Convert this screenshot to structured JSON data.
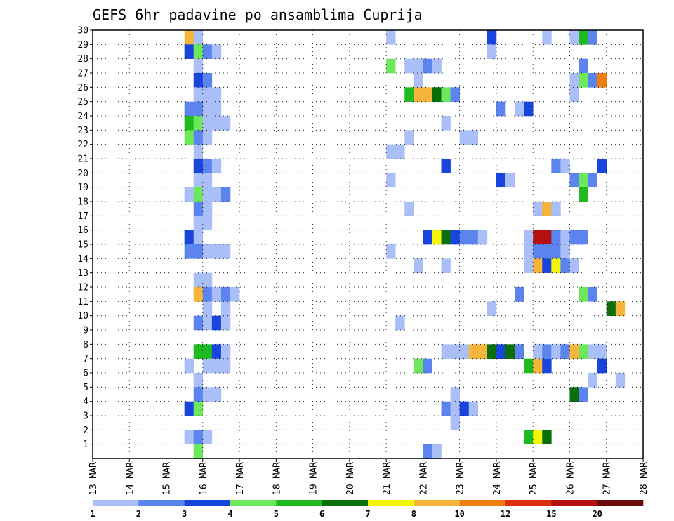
{
  "chart_data": {
    "type": "heatmap",
    "title": "GEFS 6hr padavine po ansamblima Cuprija",
    "x_ticks": [
      "13 MAR",
      "14 MAR",
      "15 MAR",
      "16 MAR",
      "17 MAR",
      "18 MAR",
      "19 MAR",
      "20 MAR",
      "21 MAR",
      "22 MAR",
      "23 MAR",
      "24 MAR",
      "25 MAR",
      "26 MAR",
      "27 MAR",
      "28 MAR"
    ],
    "y_ticks": [
      "1",
      "2",
      "3",
      "4",
      "5",
      "6",
      "7",
      "8",
      "9",
      "10",
      "11",
      "12",
      "13",
      "14",
      "15",
      "16",
      "17",
      "18",
      "19",
      "20",
      "21",
      "22",
      "23",
      "24",
      "25",
      "26",
      "27",
      "28",
      "29",
      "30"
    ],
    "x_range_days": [
      13,
      28
    ],
    "x_step_hours": 6,
    "y_range": [
      0,
      30
    ],
    "grid": true,
    "colorbar": {
      "labels": [
        "1",
        "2",
        "3",
        "4",
        "5",
        "6",
        "7",
        "8",
        "10",
        "12",
        "15",
        "20"
      ],
      "colors": [
        "#aabff7",
        "#5b84ef",
        "#1846dd",
        "#6de85c",
        "#1fba1f",
        "#0a6e0a",
        "#f5f50a",
        "#f7b43a",
        "#f07d10",
        "#dc2e0a",
        "#b41010",
        "#6a0a0a"
      ]
    },
    "note": "cells: [member(y), time index from 13 MAR 00UTC in 6h steps, precip class index into colorbar]",
    "cells": [
      [
        29,
        10,
        7
      ],
      [
        29,
        11,
        0
      ],
      [
        28,
        10,
        2
      ],
      [
        28,
        11,
        3
      ],
      [
        28,
        12,
        1
      ],
      [
        28,
        13,
        0
      ],
      [
        27,
        11,
        0
      ],
      [
        26,
        11,
        2
      ],
      [
        26,
        12,
        1
      ],
      [
        25,
        11,
        0
      ],
      [
        25,
        12,
        0
      ],
      [
        25,
        13,
        0
      ],
      [
        24,
        10,
        1
      ],
      [
        24,
        11,
        1
      ],
      [
        24,
        12,
        0
      ],
      [
        24,
        13,
        0
      ],
      [
        23,
        10,
        4
      ],
      [
        23,
        11,
        3
      ],
      [
        23,
        12,
        0
      ],
      [
        23,
        13,
        0
      ],
      [
        23,
        14,
        0
      ],
      [
        22,
        10,
        3
      ],
      [
        22,
        11,
        1
      ],
      [
        22,
        12,
        0
      ],
      [
        21,
        11,
        0
      ],
      [
        20,
        11,
        2
      ],
      [
        20,
        12,
        1
      ],
      [
        20,
        13,
        0
      ],
      [
        19,
        11,
        0
      ],
      [
        19,
        12,
        0
      ],
      [
        18,
        10,
        0
      ],
      [
        18,
        11,
        3
      ],
      [
        18,
        12,
        0
      ],
      [
        18,
        13,
        0
      ],
      [
        18,
        14,
        1
      ],
      [
        17,
        11,
        1
      ],
      [
        17,
        12,
        0
      ],
      [
        16,
        11,
        0
      ],
      [
        16,
        12,
        0
      ],
      [
        15,
        10,
        2
      ],
      [
        15,
        11,
        0
      ],
      [
        14,
        10,
        1
      ],
      [
        14,
        11,
        1
      ],
      [
        14,
        12,
        0
      ],
      [
        14,
        13,
        0
      ],
      [
        14,
        14,
        0
      ],
      [
        12,
        11,
        0
      ],
      [
        12,
        12,
        0
      ],
      [
        11,
        11,
        7
      ],
      [
        11,
        12,
        1
      ],
      [
        11,
        13,
        0
      ],
      [
        11,
        14,
        1
      ],
      [
        11,
        15,
        0
      ],
      [
        10,
        12,
        0
      ],
      [
        10,
        14,
        0
      ],
      [
        9,
        11,
        1
      ],
      [
        9,
        12,
        0
      ],
      [
        9,
        13,
        2
      ],
      [
        9,
        14,
        0
      ],
      [
        7,
        11,
        4
      ],
      [
        7,
        12,
        4
      ],
      [
        7,
        13,
        2
      ],
      [
        7,
        14,
        0
      ],
      [
        6,
        10,
        0
      ],
      [
        6,
        12,
        0
      ],
      [
        6,
        13,
        0
      ],
      [
        6,
        14,
        0
      ],
      [
        5,
        11,
        0
      ],
      [
        4,
        11,
        1
      ],
      [
        4,
        12,
        0
      ],
      [
        4,
        13,
        0
      ],
      [
        3,
        10,
        2
      ],
      [
        3,
        11,
        3
      ],
      [
        1,
        10,
        0
      ],
      [
        1,
        11,
        1
      ],
      [
        1,
        12,
        0
      ],
      [
        0,
        11,
        3
      ],
      [
        29,
        32,
        0
      ],
      [
        27,
        32,
        3
      ],
      [
        27,
        34,
        0
      ],
      [
        27,
        35,
        0
      ],
      [
        27,
        36,
        1
      ],
      [
        27,
        37,
        0
      ],
      [
        26,
        35,
        0
      ],
      [
        25,
        34,
        4
      ],
      [
        25,
        35,
        7
      ],
      [
        25,
        36,
        7
      ],
      [
        25,
        37,
        5
      ],
      [
        25,
        38,
        3
      ],
      [
        25,
        39,
        1
      ],
      [
        22,
        34,
        0
      ],
      [
        21,
        32,
        0
      ],
      [
        21,
        33,
        0
      ],
      [
        20,
        38,
        2
      ],
      [
        23,
        38,
        0
      ],
      [
        22,
        40,
        0
      ],
      [
        22,
        41,
        0
      ],
      [
        19,
        32,
        0
      ],
      [
        17,
        34,
        0
      ],
      [
        15,
        36,
        2
      ],
      [
        15,
        37,
        6
      ],
      [
        15,
        38,
        5
      ],
      [
        15,
        39,
        2
      ],
      [
        15,
        40,
        1
      ],
      [
        15,
        41,
        1
      ],
      [
        15,
        42,
        0
      ],
      [
        14,
        32,
        0
      ],
      [
        13,
        35,
        0
      ],
      [
        13,
        38,
        0
      ],
      [
        9,
        33,
        0
      ],
      [
        6,
        35,
        3
      ],
      [
        6,
        36,
        1
      ],
      [
        7,
        38,
        0
      ],
      [
        7,
        39,
        0
      ],
      [
        7,
        40,
        0
      ],
      [
        7,
        41,
        7
      ],
      [
        4,
        39,
        0
      ],
      [
        3,
        38,
        1
      ],
      [
        3,
        39,
        0
      ],
      [
        3,
        40,
        2
      ],
      [
        3,
        41,
        0
      ],
      [
        2,
        39,
        0
      ],
      [
        0,
        36,
        1
      ],
      [
        0,
        37,
        0
      ],
      [
        29,
        43,
        2
      ],
      [
        28,
        43,
        0
      ],
      [
        24,
        44,
        1
      ],
      [
        24,
        46,
        0
      ],
      [
        24,
        47,
        2
      ],
      [
        19,
        44,
        2
      ],
      [
        19,
        45,
        0
      ],
      [
        11,
        46,
        1
      ],
      [
        10,
        43,
        0
      ],
      [
        7,
        42,
        7
      ],
      [
        7,
        43,
        5
      ],
      [
        7,
        44,
        2
      ],
      [
        7,
        45,
        5
      ],
      [
        7,
        46,
        1
      ],
      [
        1,
        47,
        4
      ],
      [
        1,
        48,
        6
      ],
      [
        1,
        49,
        5
      ],
      [
        6,
        47,
        4
      ],
      [
        6,
        48,
        7
      ],
      [
        6,
        49,
        2
      ],
      [
        29,
        49,
        0
      ],
      [
        29,
        52,
        0
      ],
      [
        29,
        53,
        4
      ],
      [
        29,
        54,
        1
      ],
      [
        27,
        53,
        1
      ],
      [
        26,
        52,
        0
      ],
      [
        26,
        53,
        3
      ],
      [
        26,
        54,
        1
      ],
      [
        26,
        55,
        8
      ],
      [
        25,
        52,
        0
      ],
      [
        20,
        50,
        1
      ],
      [
        20,
        51,
        0
      ],
      [
        20,
        55,
        2
      ],
      [
        19,
        52,
        1
      ],
      [
        19,
        53,
        3
      ],
      [
        19,
        54,
        1
      ],
      [
        18,
        53,
        4
      ],
      [
        17,
        48,
        0
      ],
      [
        17,
        49,
        7
      ],
      [
        17,
        50,
        0
      ],
      [
        15,
        47,
        0
      ],
      [
        15,
        48,
        10
      ],
      [
        15,
        49,
        10
      ],
      [
        15,
        50,
        1
      ],
      [
        15,
        51,
        0
      ],
      [
        15,
        52,
        1
      ],
      [
        15,
        53,
        1
      ],
      [
        14,
        47,
        0
      ],
      [
        14,
        48,
        1
      ],
      [
        14,
        49,
        1
      ],
      [
        14,
        50,
        1
      ],
      [
        14,
        51,
        0
      ],
      [
        13,
        47,
        0
      ],
      [
        13,
        48,
        7
      ],
      [
        13,
        49,
        2
      ],
      [
        13,
        50,
        6
      ],
      [
        13,
        51,
        1
      ],
      [
        13,
        52,
        0
      ],
      [
        11,
        53,
        3
      ],
      [
        11,
        54,
        1
      ],
      [
        10,
        56,
        5
      ],
      [
        10,
        57,
        7
      ],
      [
        7,
        48,
        0
      ],
      [
        7,
        49,
        1
      ],
      [
        7,
        50,
        0
      ],
      [
        7,
        51,
        1
      ],
      [
        7,
        52,
        7
      ],
      [
        7,
        53,
        3
      ],
      [
        7,
        54,
        0
      ],
      [
        7,
        55,
        0
      ],
      [
        6,
        55,
        2
      ],
      [
        5,
        54,
        0
      ],
      [
        5,
        57,
        0
      ],
      [
        4,
        52,
        5
      ],
      [
        4,
        53,
        1
      ]
    ]
  }
}
